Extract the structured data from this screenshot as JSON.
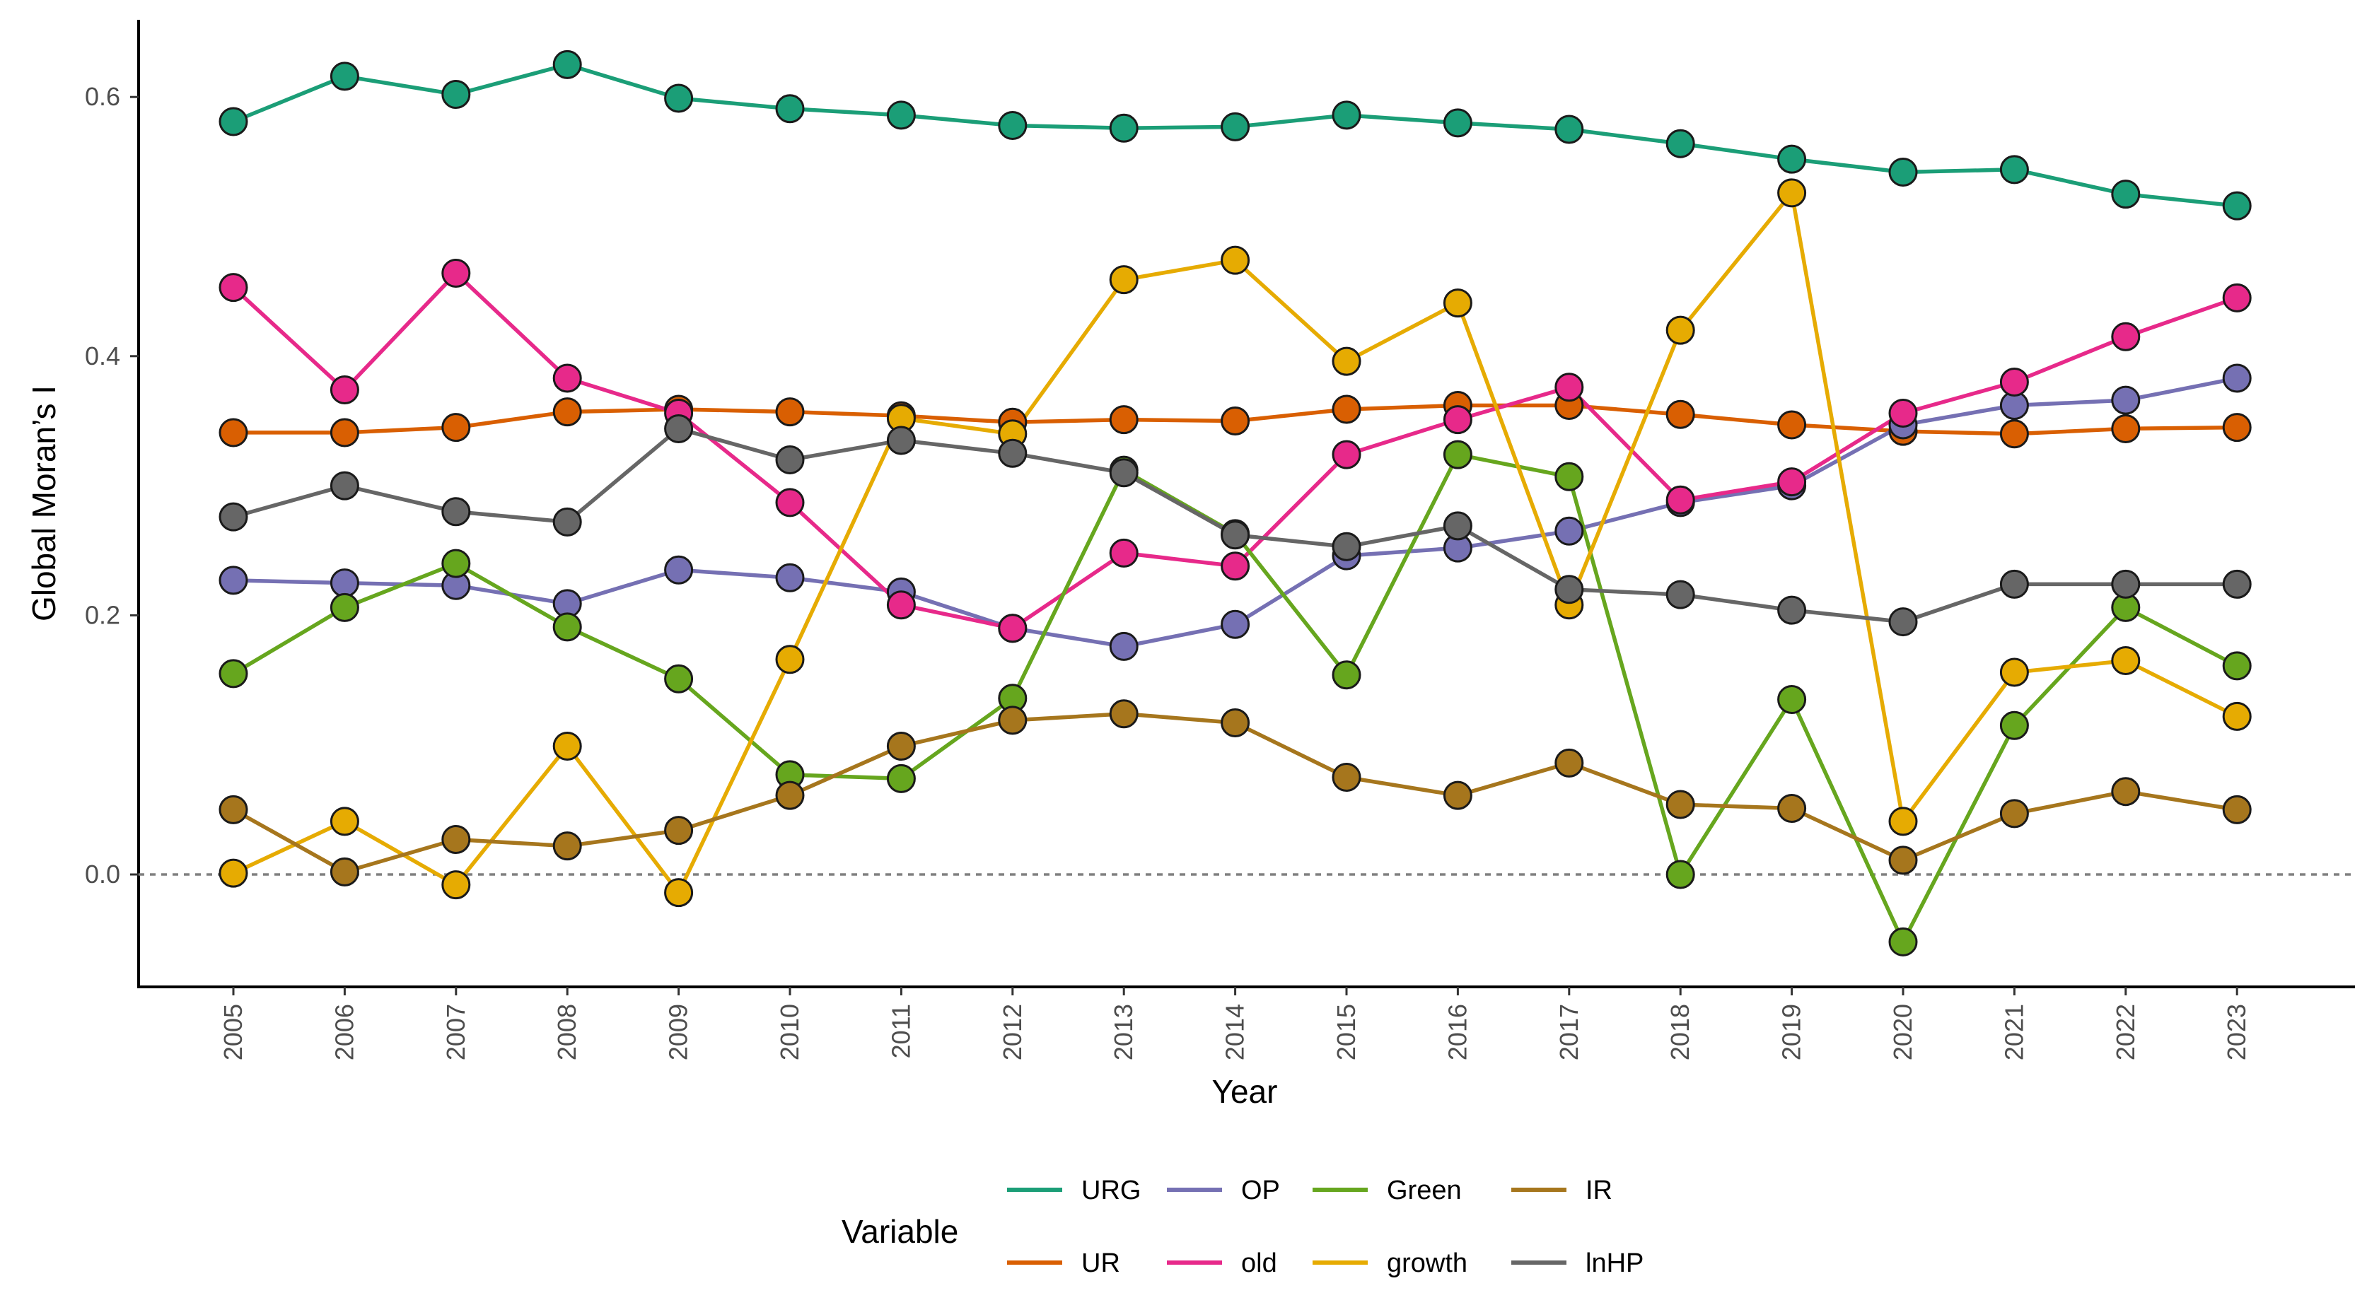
{
  "chart_data": {
    "type": "line",
    "title": "",
    "xlabel": "Year",
    "ylabel": "Global Moran’s I",
    "ylim": [
      -0.08,
      0.655
    ],
    "yticks": [
      0.0,
      0.2,
      0.4,
      0.6
    ],
    "ytick_labels": [
      "0.0",
      "0.2",
      "0.4",
      "0.6"
    ],
    "reference_line": 0.0,
    "grid": false,
    "legend_title": "Variable",
    "legend_position": "bottom",
    "x": [
      "2005",
      "2006",
      "2007",
      "2008",
      "2009",
      "2010",
      "2011",
      "2012",
      "2013",
      "2014",
      "2015",
      "2016",
      "2017",
      "2018",
      "2019",
      "2020",
      "2021",
      "2022",
      "2023"
    ],
    "series": [
      {
        "name": "URG",
        "color": "#1b9e77",
        "values": [
          0.581,
          0.616,
          0.602,
          0.625,
          0.599,
          0.591,
          0.586,
          0.578,
          0.576,
          0.577,
          0.586,
          0.58,
          0.575,
          0.564,
          0.552,
          0.542,
          0.544,
          0.525,
          0.516
        ]
      },
      {
        "name": "UR",
        "color": "#d95f02",
        "values": [
          0.341,
          0.341,
          0.345,
          0.357,
          0.359,
          0.357,
          0.354,
          0.349,
          0.351,
          0.35,
          0.359,
          0.362,
          0.362,
          0.355,
          0.347,
          0.342,
          0.34,
          0.344,
          0.345
        ]
      },
      {
        "name": "OP",
        "color": "#7570b3",
        "values": [
          0.227,
          0.225,
          0.223,
          0.209,
          0.235,
          0.229,
          0.218,
          0.19,
          0.176,
          0.193,
          0.246,
          0.252,
          0.265,
          0.287,
          0.3,
          0.347,
          0.362,
          0.366,
          0.383
        ]
      },
      {
        "name": "old",
        "color": "#e7298a",
        "values": [
          0.453,
          0.374,
          0.464,
          0.383,
          0.356,
          0.287,
          0.208,
          0.19,
          0.248,
          0.238,
          0.324,
          0.351,
          0.376,
          0.289,
          0.303,
          0.356,
          0.38,
          0.415,
          0.445
        ]
      },
      {
        "name": "Green",
        "color": "#66a61e",
        "values": [
          0.155,
          0.206,
          0.24,
          0.191,
          0.151,
          0.077,
          0.074,
          0.136,
          0.312,
          0.263,
          0.154,
          0.324,
          0.307,
          0.0,
          0.135,
          -0.052,
          0.115,
          0.206,
          0.161
        ]
      },
      {
        "name": "growth",
        "color": "#e6ab02",
        "values": [
          0.001,
          0.041,
          -0.008,
          0.099,
          -0.014,
          0.166,
          0.352,
          0.34,
          0.459,
          0.474,
          0.396,
          0.441,
          0.208,
          0.42,
          0.526,
          0.041,
          0.156,
          0.165,
          0.122
        ]
      },
      {
        "name": "IR",
        "color": "#a6761d",
        "values": [
          0.05,
          0.002,
          0.027,
          0.022,
          0.034,
          0.061,
          0.099,
          0.119,
          0.124,
          0.117,
          0.075,
          0.061,
          0.086,
          0.054,
          0.051,
          0.011,
          0.047,
          0.064,
          0.05
        ]
      },
      {
        "name": "lnHP",
        "color": "#666666",
        "values": [
          0.276,
          0.3,
          0.28,
          0.272,
          0.344,
          0.32,
          0.335,
          0.325,
          0.31,
          0.262,
          0.253,
          0.269,
          0.22,
          0.216,
          0.204,
          0.195,
          0.224,
          0.224,
          0.224
        ]
      }
    ],
    "legend_rows": [
      [
        "URG",
        "OP",
        "Green",
        "IR"
      ],
      [
        "UR",
        "old",
        "growth",
        "lnHP"
      ]
    ]
  }
}
